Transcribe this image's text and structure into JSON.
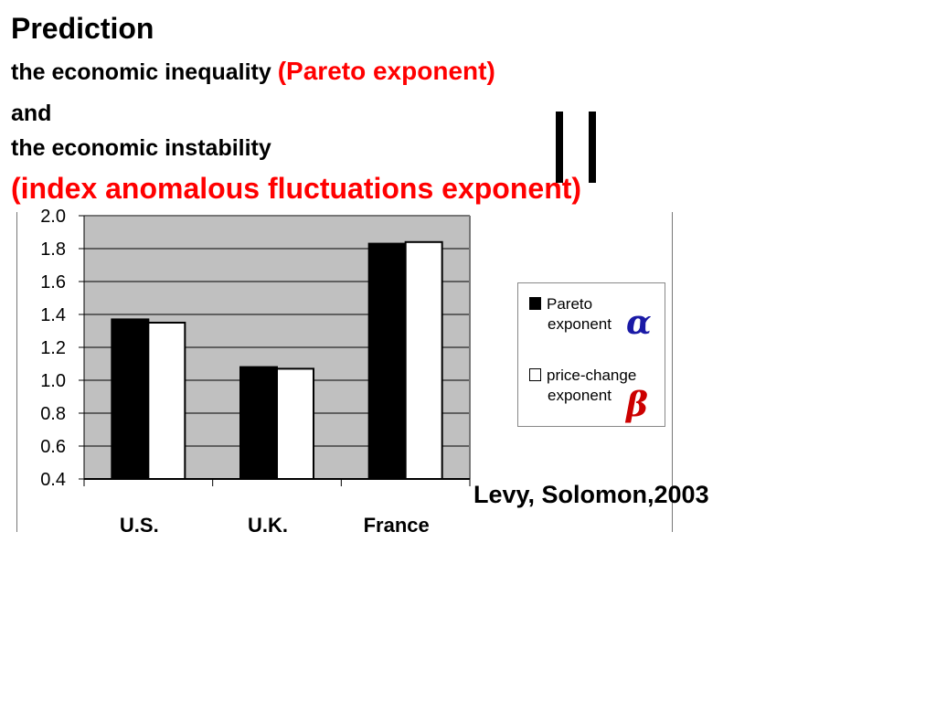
{
  "heading": {
    "title": "Prediction",
    "line1_prefix": "the economic inequality ",
    "line1_highlight": "(Pareto exponent)",
    "line2": "and",
    "line3": "the economic instability",
    "line4_highlight": "(index anomalous fluctuations exponent)",
    "highlight_color": "#ff0000"
  },
  "equality_symbol": "||",
  "legend": {
    "items": [
      {
        "label_line1": "Pareto",
        "label_line2": "exponent",
        "symbol": "α",
        "symbol_color": "#1a1aa6",
        "swatch_color": "#000000"
      },
      {
        "label_line1": "price-change",
        "label_line2": "exponent",
        "symbol": "β",
        "symbol_color": "#cc0000",
        "swatch_color": "#ffffff"
      }
    ]
  },
  "citation": "Levy, Solomon,2003",
  "chart_data": {
    "type": "bar",
    "categories": [
      "U.S.",
      "U.K.",
      "France"
    ],
    "series": [
      {
        "name": "Pareto exponent",
        "color": "#000000",
        "values": [
          1.37,
          1.08,
          1.83
        ]
      },
      {
        "name": "price-change exponent",
        "color": "#ffffff",
        "values": [
          1.35,
          1.07,
          1.84
        ]
      }
    ],
    "y_ticks": [
      "0.4",
      "0.6",
      "0.8",
      "1.0",
      "1.2",
      "1.4",
      "1.6",
      "1.8",
      "2.0"
    ],
    "ylim": [
      0.4,
      2.0
    ],
    "grid": true,
    "plot_background": "#c0c0c0",
    "legend_position": "right"
  }
}
